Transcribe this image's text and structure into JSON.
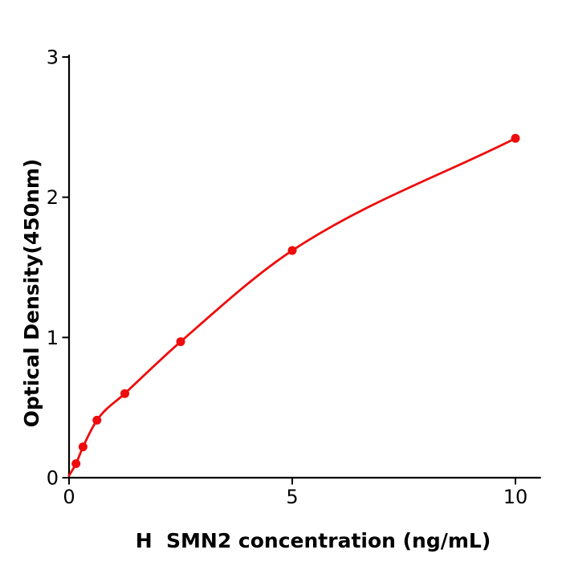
{
  "chart_data": {
    "type": "scatter",
    "title": "",
    "xlabel": "H  SMN2 concentration (ng/mL)",
    "ylabel": "Optical Density(450nm)",
    "x": [
      0.156,
      0.3125,
      0.625,
      1.25,
      2.5,
      5,
      10
    ],
    "y": [
      0.1,
      0.22,
      0.41,
      0.6,
      0.97,
      1.62,
      2.42
    ],
    "fit_curve": {
      "style": "smooth-monotone-through-points",
      "start": [
        0,
        0.015
      ]
    },
    "xlim": [
      0,
      10.55
    ],
    "ylim": [
      0,
      3.01
    ],
    "xticks": [
      {
        "value": 0,
        "label": "0"
      },
      {
        "value": 5,
        "label": "5"
      },
      {
        "value": 10,
        "label": "10"
      }
    ],
    "yticks": [
      {
        "value": 0,
        "label": "0"
      },
      {
        "value": 1,
        "label": "1"
      },
      {
        "value": 2,
        "label": "2"
      },
      {
        "value": 3,
        "label": "3"
      }
    ],
    "legend": "none",
    "grid": false,
    "colors": {
      "series": "#ee0c0c",
      "axis": "#000000",
      "background": "#ffffff"
    }
  }
}
